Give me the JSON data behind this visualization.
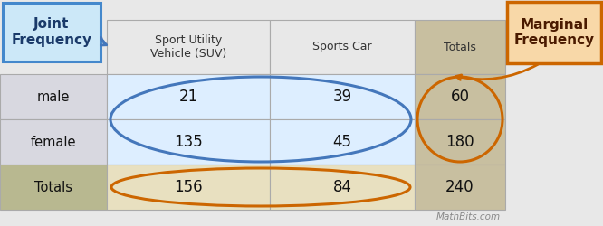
{
  "watermark": "MathBits.com",
  "col_headers": [
    "Sport Utility\nVehicle (SUV)",
    "Sports Car",
    "Totals"
  ],
  "row_headers": [
    "",
    "male",
    "female",
    "Totals"
  ],
  "table_data": [
    [
      "21",
      "39",
      "60"
    ],
    [
      "135",
      "45",
      "180"
    ],
    [
      "156",
      "84",
      "240"
    ]
  ],
  "joint_label": "Joint\nFrequency",
  "marginal_label": "Marginal\nFrequency",
  "bg_color": "#e8e8e8",
  "header_row_bg": "#e8e8e8",
  "data_bg_light": "#ddeeff",
  "totals_col_bg": "#c8bfa0",
  "totals_row_bg": "#b8b890",
  "row_label_bg_data": "#e0e0e8",
  "row_label_bg_total": "#b8b890",
  "joint_box_bg": "#cce8f8",
  "joint_box_border": "#4488cc",
  "marginal_box_bg": "#f8d8a8",
  "marginal_box_border": "#cc6600",
  "blue_ellipse_color": "#4477bb",
  "orange_ellipse_color": "#cc6600",
  "text_color": "#111111",
  "header_text_color": "#333333"
}
